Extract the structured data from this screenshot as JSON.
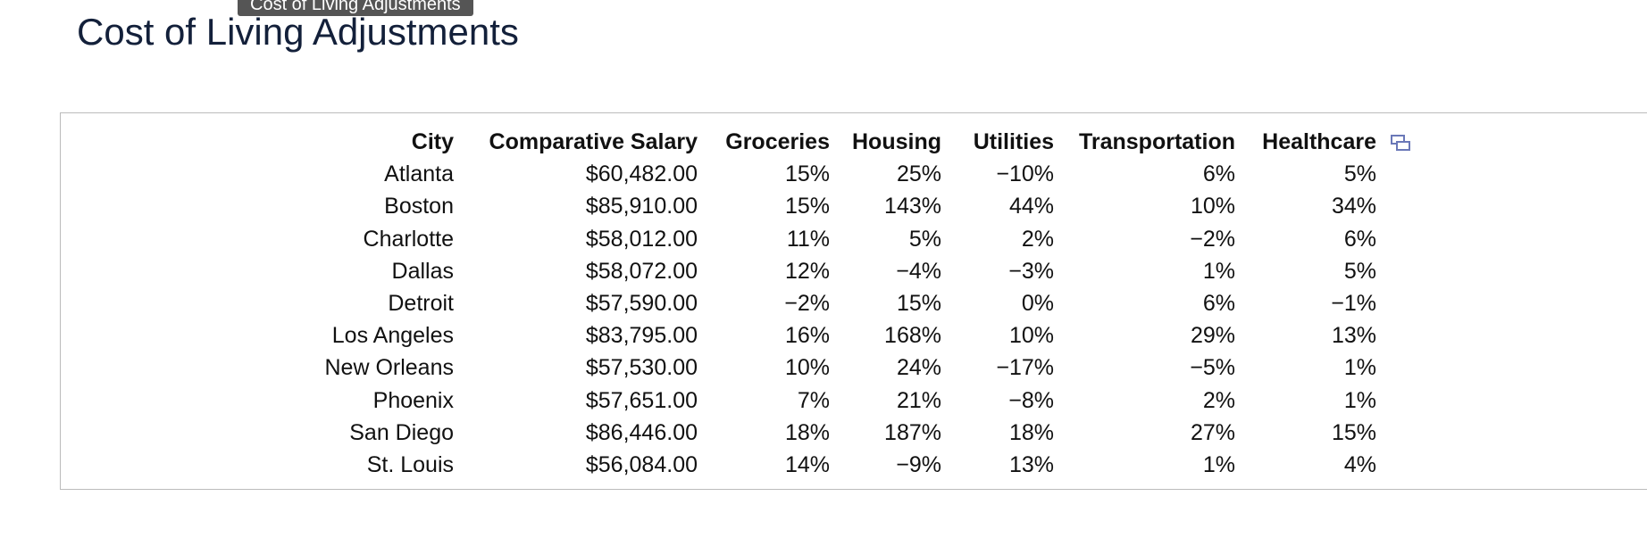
{
  "tooltip": "Cost of Living Adjustments",
  "title": "Cost of Living Adjustments",
  "table": {
    "columns": [
      "City",
      "Comparative Salary",
      "Groceries",
      "Housing",
      "Utilities",
      "Transportation",
      "Healthcare"
    ],
    "rows": [
      [
        "Atlanta",
        "$60,482.00",
        "15%",
        "25%",
        "−10%",
        "6%",
        "5%"
      ],
      [
        "Boston",
        "$85,910.00",
        "15%",
        "143%",
        "44%",
        "10%",
        "34%"
      ],
      [
        "Charlotte",
        "$58,012.00",
        "11%",
        "5%",
        "2%",
        "−2%",
        "6%"
      ],
      [
        "Dallas",
        "$58,072.00",
        "12%",
        "−4%",
        "−3%",
        "1%",
        "5%"
      ],
      [
        "Detroit",
        "$57,590.00",
        "−2%",
        "15%",
        "0%",
        "6%",
        "−1%"
      ],
      [
        "Los Angeles",
        "$83,795.00",
        "16%",
        "168%",
        "10%",
        "29%",
        "13%"
      ],
      [
        "New Orleans",
        "$57,530.00",
        "10%",
        "24%",
        "−17%",
        "−5%",
        "1%"
      ],
      [
        "Phoenix",
        "$57,651.00",
        "7%",
        "21%",
        "−8%",
        "2%",
        "1%"
      ],
      [
        "San Diego",
        "$86,446.00",
        "18%",
        "187%",
        "18%",
        "27%",
        "15%"
      ],
      [
        "St. Louis",
        "$56,084.00",
        "14%",
        "−9%",
        "13%",
        "1%",
        "4%"
      ]
    ]
  }
}
